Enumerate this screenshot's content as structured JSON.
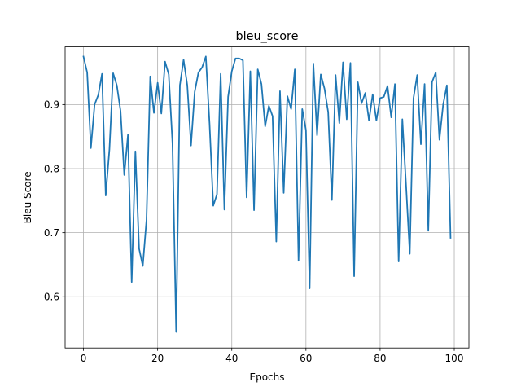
{
  "chart_data": {
    "type": "line",
    "title": "bleu_score",
    "xlabel": "Epochs",
    "ylabel": "Bleu Score",
    "xlim": [
      -4.95,
      103.95
    ],
    "ylim": [
      0.52,
      0.99
    ],
    "xticks": [
      0,
      20,
      40,
      60,
      80,
      100
    ],
    "yticks": [
      0.6,
      0.7,
      0.8,
      0.9
    ],
    "grid": true,
    "line_color": "#1f77b4",
    "series": [
      {
        "x": [
          0,
          1,
          2,
          3,
          4,
          5,
          6,
          7,
          8,
          9,
          10,
          11,
          12,
          13,
          14,
          15,
          16,
          17,
          18,
          19,
          20,
          21,
          22,
          23,
          24,
          25,
          26,
          27,
          28,
          29,
          30,
          31,
          32,
          33,
          34,
          35,
          36,
          37,
          38,
          39,
          40,
          41,
          42,
          43,
          44,
          45,
          46,
          47,
          48,
          49,
          50,
          51,
          52,
          53,
          54,
          55,
          56,
          57,
          58,
          59,
          60,
          61,
          62,
          63,
          64,
          65,
          66,
          67,
          68,
          69,
          70,
          71,
          72,
          73,
          74,
          75,
          76,
          77,
          78,
          79,
          80,
          81,
          82,
          83,
          84,
          85,
          86,
          87,
          88,
          89,
          90,
          91,
          92,
          93,
          94,
          95,
          96,
          97,
          98,
          99
        ],
        "values": [
          0.975,
          0.95,
          0.832,
          0.9,
          0.915,
          0.948,
          0.758,
          0.83,
          0.949,
          0.93,
          0.89,
          0.79,
          0.853,
          0.623,
          0.827,
          0.675,
          0.648,
          0.72,
          0.944,
          0.887,
          0.934,
          0.886,
          0.967,
          0.947,
          0.84,
          0.545,
          0.93,
          0.97,
          0.93,
          0.836,
          0.92,
          0.95,
          0.958,
          0.975,
          0.87,
          0.742,
          0.76,
          0.948,
          0.736,
          0.912,
          0.952,
          0.972,
          0.972,
          0.969,
          0.755,
          0.952,
          0.735,
          0.955,
          0.932,
          0.866,
          0.898,
          0.882,
          0.686,
          0.921,
          0.762,
          0.913,
          0.893,
          0.955,
          0.656,
          0.893,
          0.86,
          0.613,
          0.964,
          0.852,
          0.947,
          0.925,
          0.888,
          0.751,
          0.946,
          0.871,
          0.966,
          0.877,
          0.965,
          0.632,
          0.935,
          0.902,
          0.918,
          0.875,
          0.916,
          0.875,
          0.91,
          0.912,
          0.929,
          0.88,
          0.932,
          0.655,
          0.877,
          0.774,
          0.667,
          0.91,
          0.946,
          0.838,
          0.932,
          0.703,
          0.935,
          0.95,
          0.845,
          0.9,
          0.93,
          0.692
        ]
      }
    ]
  }
}
